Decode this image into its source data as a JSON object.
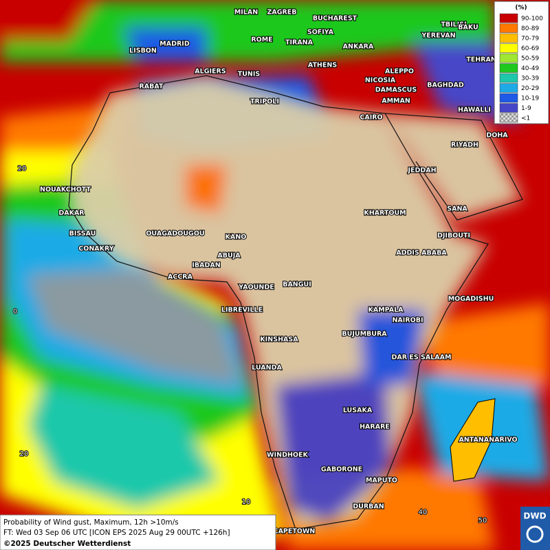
{
  "map": {
    "cities": [
      "MILAN",
      "ZAGREB",
      "BUCHAREST",
      "TBILISI",
      "BAKU",
      "SOFIYA",
      "YEREVAN",
      "MADRID",
      "ROME",
      "TIRANA",
      "ANKARA",
      "LISBON",
      "TEHRAN",
      "ATHENS",
      "ALEPPO",
      "ALGIERS",
      "TUNIS",
      "NICOSIA",
      "BAGHDAD",
      "RABAT",
      "DAMASCUS",
      "AMMAN",
      "TRIPOLI",
      "HAWALLI",
      "CAIRO",
      "DOHA",
      "RIYADH",
      "JEDDAH",
      "NOUAKCHOTT",
      "SANA",
      "KHARTOUM",
      "DAKAR",
      "BISSAU",
      "DJIBOUTI",
      "OUAGADOUGOU",
      "KANO",
      "CONAKRY",
      "ABUJA",
      "ADDIS ABABA",
      "IBADAN",
      "ACCRA",
      "YAOUNDE",
      "BANGUI",
      "MOGADISHU",
      "LIBREVILLE",
      "KAMPALA",
      "NAIROBI",
      "BUJUMBURA",
      "KINSHASA",
      "DAR ES SALAAM",
      "LUANDA",
      "LUSAKA",
      "HARARE",
      "ANTANANARIVO",
      "WINDHOEK",
      "GABORONE",
      "MAPUTO",
      "DURBAN",
      "CAPETOWN"
    ],
    "lat_labels": [
      "20",
      "0",
      "20"
    ],
    "lon_labels": [
      "10",
      "40",
      "50"
    ]
  },
  "legend": {
    "unit": "(%)",
    "entries": [
      {
        "label": "90-100",
        "color": "#c80000"
      },
      {
        "label": "80-89",
        "color": "#ff7800"
      },
      {
        "label": "70-79",
        "color": "#ffbe00"
      },
      {
        "label": "60-69",
        "color": "#ffff00"
      },
      {
        "label": "50-59",
        "color": "#a0e632"
      },
      {
        "label": "40-49",
        "color": "#1ec81e"
      },
      {
        "label": "30-39",
        "color": "#1ec8aa"
      },
      {
        "label": "20-29",
        "color": "#1eaae6"
      },
      {
        "label": "10-19",
        "color": "#1e5ae6"
      },
      {
        "label": "1-9",
        "color": "#4646c8"
      },
      {
        "label": "<1",
        "color": "#b4b4b4"
      }
    ]
  },
  "footer": {
    "lines": [
      "Probability of Wind gust, Maximum, 12h >10m/s",
      "FT: Wed 03 Sep 06 UTC [ICON EPS 2025 Aug 29 00UTC +126h]",
      "©2025 Deutscher Wetterdienst"
    ]
  },
  "logo": "DWD"
}
